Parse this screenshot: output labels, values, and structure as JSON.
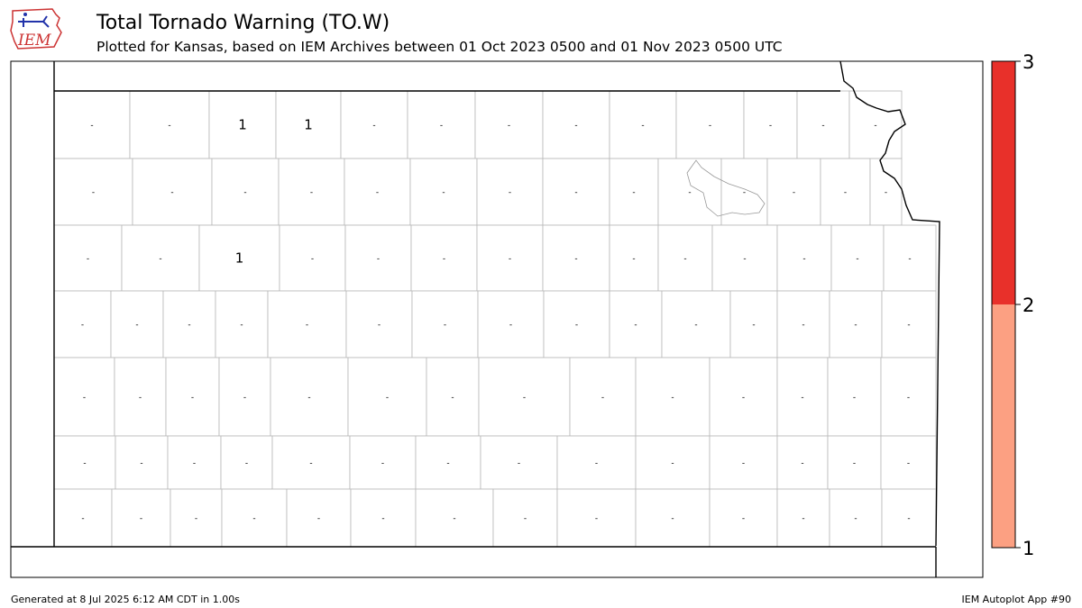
{
  "header": {
    "title": "Total Tornado Warning (TO.W)",
    "subtitle": "Plotted for Kansas, based on IEM Archives  between 01 Oct 2023 0500 and 01 Nov 2023 0500 UTC",
    "logo_text": "IEM"
  },
  "footer": {
    "generated": "Generated at 8 Jul 2025 6:12 AM CDT in 1.00s",
    "app": "IEM Autoplot App #90"
  },
  "legend": {
    "ticks": [
      "3",
      "2",
      "1"
    ],
    "colors": [
      "#e8302a",
      "#fca082"
    ]
  },
  "map": {
    "state": "Kansas",
    "no_data_label": "-",
    "colors": {
      "none": "#ffffff",
      "one": "#fca082",
      "border": "#000000",
      "county": "#b8b8b8"
    },
    "counties": [
      {
        "name": "Cheyenne",
        "value": 0
      },
      {
        "name": "Rawlins",
        "value": 0
      },
      {
        "name": "Decatur",
        "value": 1
      },
      {
        "name": "Norton",
        "value": 1
      },
      {
        "name": "Phillips",
        "value": 0
      },
      {
        "name": "Smith",
        "value": 0
      },
      {
        "name": "Jewell",
        "value": 0
      },
      {
        "name": "Republic",
        "value": 0
      },
      {
        "name": "Washington",
        "value": 0
      },
      {
        "name": "Marshall",
        "value": 0
      },
      {
        "name": "Nemaha",
        "value": 0
      },
      {
        "name": "Brown",
        "value": 0
      },
      {
        "name": "Doniphan",
        "value": 0
      },
      {
        "name": "Sherman",
        "value": 0
      },
      {
        "name": "Thomas",
        "value": 0
      },
      {
        "name": "Sheridan",
        "value": 0
      },
      {
        "name": "Graham",
        "value": 0
      },
      {
        "name": "Rooks",
        "value": 0
      },
      {
        "name": "Osborne",
        "value": 0
      },
      {
        "name": "Mitchell",
        "value": 0
      },
      {
        "name": "Cloud",
        "value": 0
      },
      {
        "name": "Clay",
        "value": 0
      },
      {
        "name": "Riley",
        "value": 0
      },
      {
        "name": "Pottawatomie",
        "value": 0
      },
      {
        "name": "Jackson",
        "value": 0
      },
      {
        "name": "Atchison",
        "value": 0
      },
      {
        "name": "Jefferson",
        "value": 0
      },
      {
        "name": "Leavenworth",
        "value": 0
      },
      {
        "name": "Wallace",
        "value": 0
      },
      {
        "name": "Logan",
        "value": 0
      },
      {
        "name": "Gove",
        "value": 1
      },
      {
        "name": "Trego",
        "value": 0
      },
      {
        "name": "Ellis",
        "value": 0
      },
      {
        "name": "Russell",
        "value": 0
      },
      {
        "name": "Lincoln",
        "value": 0
      },
      {
        "name": "Ottawa",
        "value": 0
      },
      {
        "name": "Saline",
        "value": 0
      },
      {
        "name": "Dickinson",
        "value": 0
      },
      {
        "name": "Geary",
        "value": 0
      },
      {
        "name": "Wabaunsee",
        "value": 0
      },
      {
        "name": "Shawnee",
        "value": 0
      },
      {
        "name": "Douglas",
        "value": 0
      },
      {
        "name": "Johnson",
        "value": 0
      },
      {
        "name": "Wyandotte",
        "value": 0
      }
    ]
  }
}
